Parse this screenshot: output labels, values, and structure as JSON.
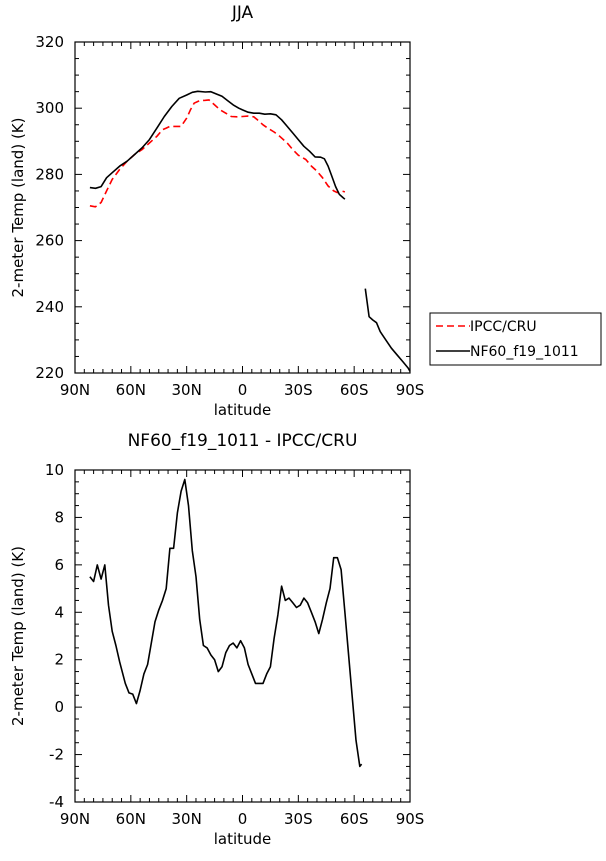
{
  "chart_data": [
    {
      "type": "line",
      "title": "JJA",
      "xlabel": "latitude",
      "ylabel": "2-meter Temp (land) (K)",
      "xlim": [
        90,
        -90
      ],
      "ylim": [
        220,
        320
      ],
      "xticks": [
        90,
        60,
        30,
        0,
        -30,
        -60,
        -90
      ],
      "xtick_labels": [
        "90N",
        "60N",
        "30N",
        "0",
        "30S",
        "60S",
        "90S"
      ],
      "yticks": [
        220,
        240,
        260,
        280,
        300,
        320
      ],
      "ytick_labels": [
        "220",
        "240",
        "260",
        "280",
        "300",
        "320"
      ],
      "legend": "outside-right",
      "series": [
        {
          "name": "IPCC/CRU",
          "color": "#ff0000",
          "dash": "dashed",
          "segments": [
            [
              [
                82,
                270.5
              ],
              [
                79,
                270.2
              ],
              [
                76,
                271.5
              ],
              [
                73,
                275
              ],
              [
                70,
                278.5
              ],
              [
                66,
                281.5
              ],
              [
                62,
                284
              ],
              [
                58,
                286
              ],
              [
                54,
                287.5
              ],
              [
                50,
                289.5
              ],
              [
                46,
                291.5
              ],
              [
                43,
                293.5
              ],
              [
                41,
                294
              ],
              [
                39,
                294.5
              ],
              [
                36,
                294.5
              ],
              [
                33,
                294.5
              ],
              [
                30,
                297
              ],
              [
                28,
                299.5
              ],
              [
                26,
                301.5
              ],
              [
                23,
                302.3
              ],
              [
                20,
                302.4
              ],
              [
                18,
                302.5
              ],
              [
                15,
                301
              ],
              [
                12,
                299.5
              ],
              [
                9,
                298.5
              ],
              [
                6,
                297.5
              ],
              [
                3,
                297.4
              ],
              [
                0,
                297.5
              ],
              [
                -3,
                297.6
              ],
              [
                -6,
                297.4
              ],
              [
                -8,
                296.5
              ],
              [
                -11,
                295
              ],
              [
                -14,
                293.8
              ],
              [
                -17,
                292.8
              ],
              [
                -20,
                291.5
              ],
              [
                -24,
                289.5
              ],
              [
                -27,
                287.5
              ],
              [
                -30,
                285.8
              ],
              [
                -34,
                284.5
              ],
              [
                -37,
                282.5
              ],
              [
                -40,
                281
              ],
              [
                -43,
                279
              ],
              [
                -46,
                276.5
              ],
              [
                -49,
                275
              ],
              [
                -51,
                274.5
              ],
              [
                -53,
                275
              ],
              [
                -55,
                274.7
              ]
            ]
          ]
        },
        {
          "name": "NF60_f19_1011",
          "color": "#000000",
          "dash": "solid",
          "segments": [
            [
              [
                82,
                276
              ],
              [
                79,
                275.8
              ],
              [
                76,
                276.3
              ],
              [
                73,
                279
              ],
              [
                70,
                280.5
              ],
              [
                66,
                282.5
              ],
              [
                62,
                284
              ],
              [
                58,
                286
              ],
              [
                54,
                288
              ],
              [
                50,
                290.5
              ],
              [
                46,
                294
              ],
              [
                42,
                297.5
              ],
              [
                38,
                300.5
              ],
              [
                34,
                303
              ],
              [
                30,
                304
              ],
              [
                27,
                304.8
              ],
              [
                24,
                305.1
              ],
              [
                20,
                304.9
              ],
              [
                17,
                305
              ],
              [
                14,
                304.3
              ],
              [
                11,
                303.6
              ],
              [
                8,
                302.3
              ],
              [
                5,
                301
              ],
              [
                2,
                300
              ],
              [
                0,
                299.5
              ],
              [
                -3,
                298.8
              ],
              [
                -6,
                298.5
              ],
              [
                -9,
                298.5
              ],
              [
                -12,
                298.2
              ],
              [
                -15,
                298.3
              ],
              [
                -18,
                298
              ],
              [
                -21,
                296.5
              ],
              [
                -24,
                294.5
              ],
              [
                -27,
                292.5
              ],
              [
                -30,
                290.5
              ],
              [
                -33,
                288.5
              ],
              [
                -36,
                287
              ],
              [
                -39,
                285.3
              ],
              [
                -42,
                285.2
              ],
              [
                -44,
                284.7
              ],
              [
                -46,
                282.5
              ],
              [
                -48,
                279.5
              ],
              [
                -50,
                276.3
              ],
              [
                -52,
                274
              ],
              [
                -54,
                273
              ],
              [
                -55,
                272.5
              ]
            ],
            [
              [
                -66,
                245.5
              ],
              [
                -68,
                237
              ],
              [
                -70,
                236
              ],
              [
                -72,
                235.2
              ],
              [
                -74,
                232.5
              ],
              [
                -77,
                230
              ],
              [
                -80,
                227.5
              ],
              [
                -83,
                225.5
              ],
              [
                -86,
                223.5
              ],
              [
                -89,
                221.5
              ],
              [
                -90,
                220.5
              ]
            ]
          ]
        }
      ]
    },
    {
      "type": "line",
      "title": "NF60_f19_1011 - IPCC/CRU",
      "xlabel": "latitude",
      "ylabel": "2-meter Temp (land) (K)",
      "xlim": [
        90,
        -90
      ],
      "ylim": [
        -4,
        10
      ],
      "xticks": [
        90,
        60,
        30,
        0,
        -30,
        -60,
        -90
      ],
      "xtick_labels": [
        "90N",
        "60N",
        "30N",
        "0",
        "30S",
        "60S",
        "90S"
      ],
      "yticks": [
        -4,
        -2,
        0,
        2,
        4,
        6,
        8,
        10
      ],
      "ytick_labels": [
        "-4",
        "-2",
        "0",
        "2",
        "4",
        "6",
        "8",
        "10"
      ],
      "series": [
        {
          "name": "NF60_f19_1011 - IPCC/CRU",
          "color": "#000000",
          "dash": "solid",
          "segments": [
            [
              [
                82,
                5.5
              ],
              [
                80,
                5.3
              ],
              [
                78,
                6
              ],
              [
                76,
                5.4
              ],
              [
                74,
                6
              ],
              [
                72,
                4.3
              ],
              [
                70,
                3.2
              ],
              [
                68,
                2.6
              ],
              [
                66,
                1.9
              ],
              [
                63,
                1
              ],
              [
                61,
                0.6
              ],
              [
                59,
                0.55
              ],
              [
                57,
                0.15
              ],
              [
                55,
                0.7
              ],
              [
                53,
                1.4
              ],
              [
                51,
                1.8
              ],
              [
                49,
                2.7
              ],
              [
                47,
                3.6
              ],
              [
                45,
                4.1
              ],
              [
                43,
                4.5
              ],
              [
                41,
                5
              ],
              [
                39,
                6.7
              ],
              [
                37,
                6.7
              ],
              [
                35,
                8.2
              ],
              [
                33,
                9.1
              ],
              [
                31,
                9.6
              ],
              [
                29,
                8.5
              ],
              [
                27,
                6.6
              ],
              [
                25,
                5.5
              ],
              [
                23,
                3.7
              ],
              [
                21,
                2.6
              ],
              [
                19,
                2.5
              ],
              [
                17,
                2.2
              ],
              [
                15,
                2
              ],
              [
                13,
                1.5
              ],
              [
                11,
                1.7
              ],
              [
                9,
                2.3
              ],
              [
                7,
                2.6
              ],
              [
                5,
                2.7
              ],
              [
                3,
                2.5
              ],
              [
                1,
                2.8
              ],
              [
                -1,
                2.5
              ],
              [
                -3,
                1.8
              ],
              [
                -5,
                1.4
              ],
              [
                -7,
                1
              ],
              [
                -9,
                1
              ],
              [
                -11,
                1
              ],
              [
                -13,
                1.4
              ],
              [
                -15,
                1.7
              ],
              [
                -17,
                2.9
              ],
              [
                -19,
                3.9
              ],
              [
                -21,
                5.1
              ],
              [
                -23,
                4.5
              ],
              [
                -25,
                4.6
              ],
              [
                -27,
                4.4
              ],
              [
                -29,
                4.2
              ],
              [
                -31,
                4.3
              ],
              [
                -33,
                4.6
              ],
              [
                -35,
                4.4
              ],
              [
                -37,
                4
              ],
              [
                -39,
                3.6
              ],
              [
                -41,
                3.1
              ],
              [
                -43,
                3.7
              ],
              [
                -45,
                4.4
              ],
              [
                -47,
                5
              ],
              [
                -49,
                6.3
              ],
              [
                -51,
                6.3
              ],
              [
                -53,
                5.8
              ],
              [
                -55,
                4
              ],
              [
                -57,
                2.2
              ],
              [
                -59,
                0.4
              ],
              [
                -61,
                -1.4
              ],
              [
                -63,
                -2.5
              ],
              [
                -64,
                -2.4
              ]
            ]
          ]
        }
      ]
    }
  ]
}
